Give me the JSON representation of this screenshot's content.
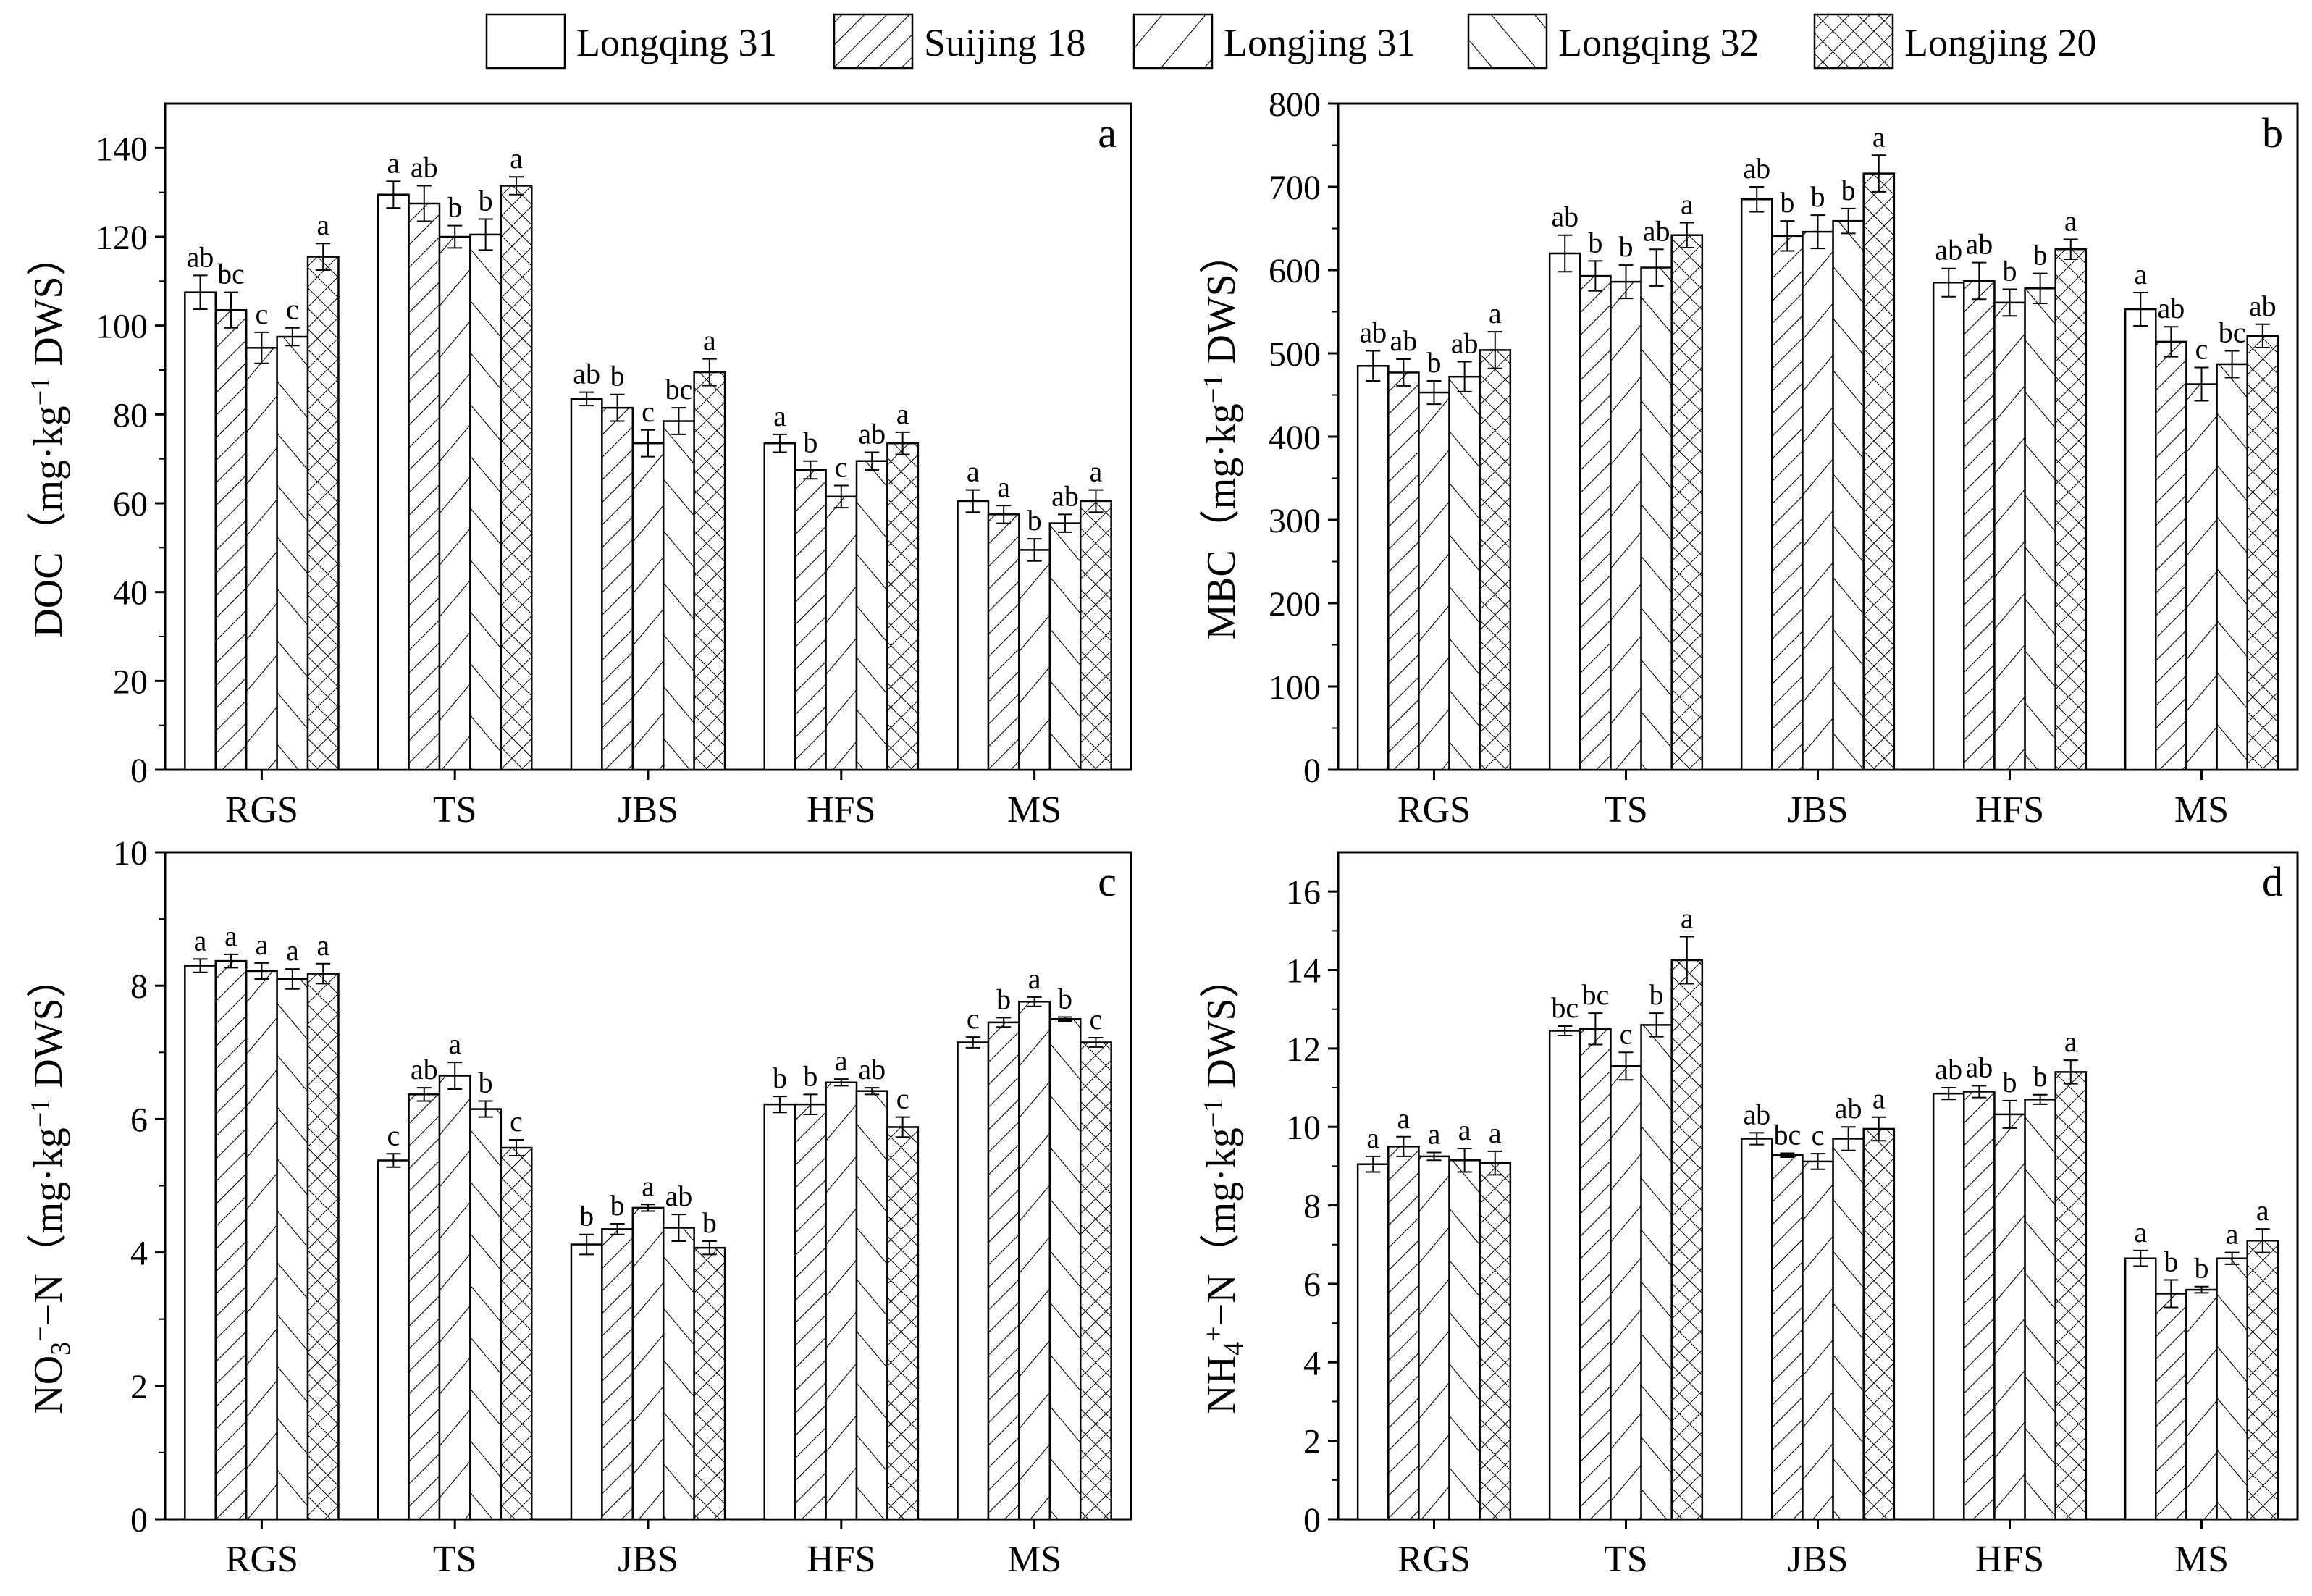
{
  "legend": {
    "items": [
      {
        "label": "Longqing 31",
        "pattern": "open"
      },
      {
        "label": "Suijing 18",
        "pattern": "dense-diag"
      },
      {
        "label": "Longjing 31",
        "pattern": "sparse-diag"
      },
      {
        "label": "Longqing 32",
        "pattern": "back-diag"
      },
      {
        "label": "Longjing 20",
        "pattern": "cross"
      }
    ],
    "placement": "top-center"
  },
  "chart_data": [
    {
      "type": "bar",
      "panel_label": "a",
      "ylabel_main": "DOC（mg·kg",
      "ylabel_sup": "−1",
      "ylabel_end": " DWS）",
      "categories": [
        "RGS",
        "TS",
        "JBS",
        "HFS",
        "MS"
      ],
      "ylim": [
        0,
        150
      ],
      "yticks": [
        "0",
        "20",
        "40",
        "60",
        "80",
        "100",
        "120",
        "140"
      ],
      "series": [
        {
          "name": "Longqing 31",
          "values": [
            107.5,
            129.5,
            83.5,
            73.5,
            60.5
          ],
          "errors": [
            3.8,
            3,
            1.5,
            2,
            2.5
          ],
          "letters": [
            "ab",
            "a",
            "ab",
            "a",
            "a"
          ]
        },
        {
          "name": "Suijing 18",
          "values": [
            103.5,
            127.5,
            81.5,
            67.5,
            57.5
          ],
          "errors": [
            4,
            4,
            3,
            2,
            2
          ],
          "letters": [
            "bc",
            "ab",
            "b",
            "b",
            "a"
          ]
        },
        {
          "name": "Longjing 31",
          "values": [
            95,
            120,
            73.5,
            61.5,
            49.5
          ],
          "errors": [
            3.5,
            2.5,
            3,
            2.5,
            2.5
          ],
          "letters": [
            "c",
            "b",
            "c",
            "c",
            "b"
          ]
        },
        {
          "name": "Longqing 32",
          "values": [
            97.5,
            120.5,
            78.5,
            69.5,
            55.5
          ],
          "errors": [
            2,
            3.5,
            3,
            2,
            2
          ],
          "letters": [
            "c",
            "b",
            "bc",
            "ab",
            "ab"
          ]
        },
        {
          "name": "Longjing 20",
          "values": [
            115.5,
            131.5,
            89.5,
            73.5,
            60.5
          ],
          "errors": [
            3,
            2,
            3,
            2.5,
            2.5
          ],
          "letters": [
            "a",
            "a",
            "a",
            "a",
            "a"
          ]
        }
      ]
    },
    {
      "type": "bar",
      "panel_label": "b",
      "ylabel_main": "MBC（mg·kg",
      "ylabel_sup": "−1",
      "ylabel_end": " DWS）",
      "categories": [
        "RGS",
        "TS",
        "JBS",
        "HFS",
        "MS"
      ],
      "ylim": [
        0,
        800
      ],
      "yticks": [
        "0",
        "100",
        "200",
        "300",
        "400",
        "500",
        "600",
        "700",
        "800"
      ],
      "series": [
        {
          "name": "Longqing 31",
          "values": [
            485,
            620,
            685,
            585,
            553
          ],
          "errors": [
            18,
            22,
            15,
            17,
            20
          ],
          "letters": [
            "ab",
            "ab",
            "ab",
            "ab",
            "a"
          ]
        },
        {
          "name": "Suijing 18",
          "values": [
            477,
            593,
            641,
            587,
            514
          ],
          "errors": [
            16,
            18,
            18,
            22,
            18
          ],
          "letters": [
            "ab",
            "b",
            "b",
            "ab",
            "ab"
          ]
        },
        {
          "name": "Longjing 31",
          "values": [
            453,
            586,
            646,
            561,
            463
          ],
          "errors": [
            14,
            20,
            20,
            16,
            20
          ],
          "letters": [
            "b",
            "b",
            "b",
            "b",
            "c"
          ]
        },
        {
          "name": "Longqing 32",
          "values": [
            472,
            603,
            659,
            578,
            487
          ],
          "errors": [
            18,
            22,
            15,
            18,
            16
          ],
          "letters": [
            "ab",
            "ab",
            "b",
            "b",
            "bc"
          ]
        },
        {
          "name": "Longjing 20",
          "values": [
            504,
            642,
            716,
            625,
            521
          ],
          "errors": [
            22,
            15,
            22,
            12,
            14
          ],
          "letters": [
            "a",
            "a",
            "a",
            "a",
            "ab"
          ]
        }
      ]
    },
    {
      "type": "bar",
      "panel_label": "c",
      "ylabel_main": "NO",
      "ylabel_sub": "3",
      "ylabel_sup": "−",
      "ylabel_end": "−N（mg·kg",
      "ylabel_sup2": "−1",
      "ylabel_end2": " DWS）",
      "categories": [
        "RGS",
        "TS",
        "JBS",
        "HFS",
        "MS"
      ],
      "ylim": [
        0,
        10
      ],
      "yticks": [
        "0",
        "2",
        "4",
        "6",
        "8",
        "10"
      ],
      "series": [
        {
          "name": "Longqing 31",
          "values": [
            8.3,
            5.38,
            4.12,
            6.22,
            7.15
          ],
          "errors": [
            0.1,
            0.1,
            0.15,
            0.12,
            0.08
          ],
          "letters": [
            "a",
            "c",
            "b",
            "b",
            "c"
          ]
        },
        {
          "name": "Suijing 18",
          "values": [
            8.37,
            6.37,
            4.35,
            6.22,
            7.45
          ],
          "errors": [
            0.1,
            0.1,
            0.08,
            0.15,
            0.07
          ],
          "letters": [
            "a",
            "ab",
            "b",
            "b",
            "b"
          ]
        },
        {
          "name": "Longjing 31",
          "values": [
            8.22,
            6.65,
            4.67,
            6.55,
            7.76
          ],
          "errors": [
            0.12,
            0.2,
            0.05,
            0.05,
            0.07
          ],
          "letters": [
            "a",
            "a",
            "a",
            "a",
            "a"
          ]
        },
        {
          "name": "Longqing 32",
          "values": [
            8.1,
            6.15,
            4.37,
            6.42,
            7.5
          ],
          "errors": [
            0.15,
            0.12,
            0.2,
            0.05,
            0.03
          ],
          "letters": [
            "a",
            "b",
            "ab",
            "ab",
            "b"
          ]
        },
        {
          "name": "Longjing 20",
          "values": [
            8.18,
            5.57,
            4.07,
            5.88,
            7.15
          ],
          "errors": [
            0.15,
            0.12,
            0.1,
            0.15,
            0.07
          ],
          "letters": [
            "a",
            "c",
            "b",
            "c",
            "c"
          ]
        }
      ]
    },
    {
      "type": "bar",
      "panel_label": "d",
      "ylabel_main": "NH",
      "ylabel_sub": "4",
      "ylabel_sup": "+",
      "ylabel_end": "−N（mg·kg",
      "ylabel_sup2": "−1",
      "ylabel_end2": " DWS）",
      "categories": [
        "RGS",
        "TS",
        "JBS",
        "HFS",
        "MS"
      ],
      "ylim": [
        0,
        17
      ],
      "yticks": [
        "0",
        "2",
        "4",
        "6",
        "8",
        "10",
        "12",
        "14",
        "16"
      ],
      "series": [
        {
          "name": "Longqing 31",
          "values": [
            9.05,
            12.45,
            9.7,
            10.85,
            6.65
          ],
          "errors": [
            0.2,
            0.12,
            0.15,
            0.15,
            0.2
          ],
          "letters": [
            "a",
            "bc",
            "ab",
            "ab",
            "a"
          ]
        },
        {
          "name": "Suijing 18",
          "values": [
            9.5,
            12.5,
            9.28,
            10.9,
            5.75
          ],
          "errors": [
            0.25,
            0.4,
            0.05,
            0.15,
            0.35
          ],
          "letters": [
            "a",
            "bc",
            "bc",
            "ab",
            "b"
          ]
        },
        {
          "name": "Longjing 31",
          "values": [
            9.25,
            11.55,
            9.12,
            10.32,
            5.85
          ],
          "errors": [
            0.1,
            0.35,
            0.2,
            0.35,
            0.08
          ],
          "letters": [
            "a",
            "c",
            "c",
            "b",
            "b"
          ]
        },
        {
          "name": "Longqing 32",
          "values": [
            9.15,
            12.6,
            9.7,
            10.7,
            6.65
          ],
          "errors": [
            0.3,
            0.3,
            0.3,
            0.12,
            0.15
          ],
          "letters": [
            "a",
            "b",
            "ab",
            "b",
            "a"
          ]
        },
        {
          "name": "Longjing 20",
          "values": [
            9.08,
            14.25,
            9.95,
            11.4,
            7.1
          ],
          "errors": [
            0.3,
            0.6,
            0.3,
            0.3,
            0.3
          ],
          "letters": [
            "a",
            "a",
            "a",
            "a",
            "a"
          ]
        }
      ]
    }
  ]
}
